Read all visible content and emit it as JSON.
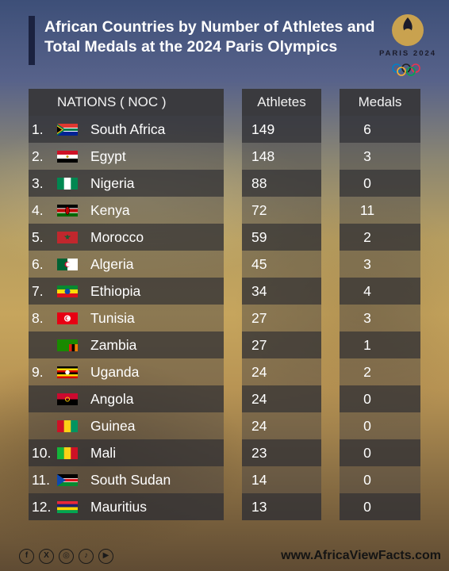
{
  "title": "African Countries by Number of Athletes and Total Medals at the 2024 Paris Olympics",
  "logo_text": "PARIS 2024",
  "headers": {
    "nations": "NATIONS ( NOC )",
    "athletes": "Athletes",
    "medals": "Medals"
  },
  "rows": [
    {
      "rank": "1.",
      "country": "South Africa",
      "athletes": "149",
      "medals": "6",
      "flag": "south-africa-flag"
    },
    {
      "rank": "2.",
      "country": "Egypt",
      "athletes": "148",
      "medals": "3",
      "flag": "egypt-flag"
    },
    {
      "rank": "3.",
      "country": "Nigeria",
      "athletes": "88",
      "medals": "0",
      "flag": "nigeria-flag"
    },
    {
      "rank": "4.",
      "country": "Kenya",
      "athletes": "72",
      "medals": "11",
      "flag": "kenya-flag"
    },
    {
      "rank": "5.",
      "country": "Morocco",
      "athletes": "59",
      "medals": "2",
      "flag": "morocco-flag"
    },
    {
      "rank": "6.",
      "country": "Algeria",
      "athletes": "45",
      "medals": "3",
      "flag": "algeria-flag"
    },
    {
      "rank": "7.",
      "country": "Ethiopia",
      "athletes": "34",
      "medals": "4",
      "flag": "ethiopia-flag"
    },
    {
      "rank": "8.",
      "country": "Tunisia",
      "athletes": "27",
      "medals": "3",
      "flag": "tunisia-flag"
    },
    {
      "rank": "",
      "country": "Zambia",
      "athletes": "27",
      "medals": "1",
      "flag": "zambia-flag"
    },
    {
      "rank": "9.",
      "country": "Uganda",
      "athletes": "24",
      "medals": "2",
      "flag": "uganda-flag"
    },
    {
      "rank": "",
      "country": "Angola",
      "athletes": "24",
      "medals": "0",
      "flag": "angola-flag"
    },
    {
      "rank": "",
      "country": "Guinea",
      "athletes": "24",
      "medals": "0",
      "flag": "guinea-flag"
    },
    {
      "rank": "10.",
      "country": "Mali",
      "athletes": "23",
      "medals": "0",
      "flag": "mali-flag"
    },
    {
      "rank": "11.",
      "country": "South Sudan",
      "athletes": "14",
      "medals": "0",
      "flag": "south-sudan-flag"
    },
    {
      "rank": "12.",
      "country": "Mauritius",
      "athletes": "13",
      "medals": "0",
      "flag": "mauritius-flag"
    }
  ],
  "footer": {
    "icons": [
      "facebook-icon",
      "x-icon",
      "instagram-icon",
      "tiktok-icon",
      "youtube-icon"
    ],
    "website": "www.AfricaViewFacts.com"
  }
}
